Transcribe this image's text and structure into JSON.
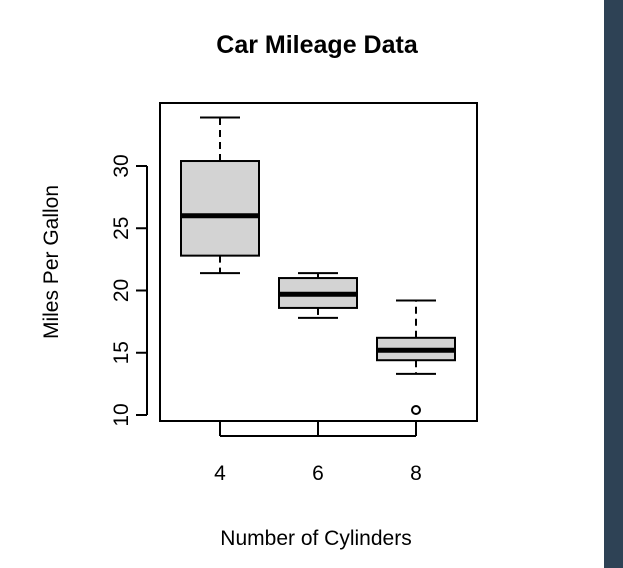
{
  "colors": {
    "box_fill": "#d3d3d3",
    "stroke": "#000000",
    "panel": "#2e4255",
    "background": "#ffffff"
  },
  "chart_data": {
    "type": "boxplot",
    "title": "Car Mileage Data",
    "xlabel": "Number of Cylinders",
    "ylabel": "Miles Per Gallon",
    "categories": [
      "4",
      "6",
      "8"
    ],
    "ylim": [
      9.5,
      35.5
    ],
    "yticks": [
      10,
      15,
      20,
      25,
      30
    ],
    "boxes": [
      {
        "category": "4",
        "whisker_low": 21.4,
        "q1": 22.8,
        "median": 26.0,
        "q3": 30.4,
        "whisker_high": 33.9,
        "outliers": []
      },
      {
        "category": "6",
        "whisker_low": 17.8,
        "q1": 18.6,
        "median": 19.7,
        "q3": 21.0,
        "whisker_high": 21.4,
        "outliers": []
      },
      {
        "category": "8",
        "whisker_low": 13.3,
        "q1": 14.4,
        "median": 15.2,
        "q3": 16.2,
        "whisker_high": 19.2,
        "outliers": [
          10.4
        ]
      }
    ],
    "grid": false,
    "legend": "none"
  }
}
